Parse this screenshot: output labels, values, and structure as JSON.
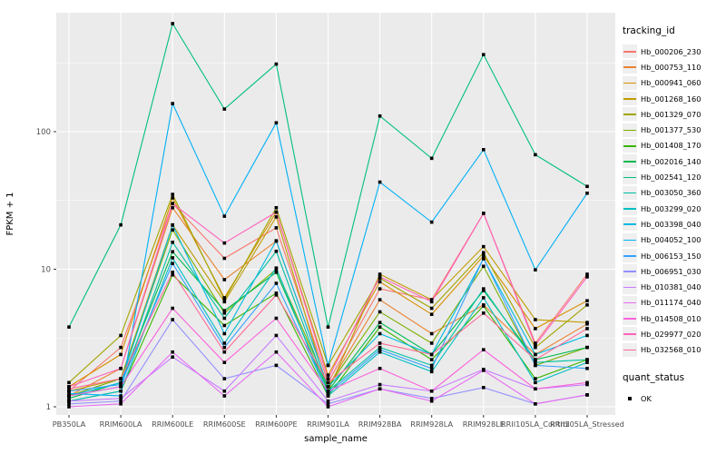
{
  "figure": {
    "background": "#FFFFFF",
    "panel_background": "#EBEBEB",
    "grid_color": "#FFFFFF",
    "tick_label_color": "#4D4D4D",
    "axis_title_color": "#000000",
    "point_color": "#000000"
  },
  "axes": {
    "x_title": "sample_name",
    "y_title": "FPKM + 1",
    "y_tick_labels": [
      "1",
      "10",
      "100"
    ]
  },
  "legend": {
    "tracking_title": "tracking_id",
    "quant_title": "quant_status",
    "quant_entries": [
      {
        "label": "OK"
      }
    ]
  },
  "chart_data": {
    "type": "line",
    "x_axis": "sample_name",
    "y_axis": "FPKM + 1",
    "y_scale": "log10",
    "ylim": [
      1,
      730
    ],
    "y_major_ticks": [
      1,
      10,
      100
    ],
    "y_minor_ticks": [
      3.162,
      31.62,
      316.2
    ],
    "grid": true,
    "legend_position": "right",
    "marker": "black-square",
    "marker_legend_label": "OK",
    "categories": [
      "PB350LA",
      "RRIM600LA",
      "RRIM600LE",
      "RRIM600SE",
      "RRIM600PE",
      "RRIM901LA",
      "RRIM928BA",
      "RRIM928LA",
      "RRIM928LE",
      "RRII105LA_Control",
      "RRII105LA_Stressed"
    ],
    "series": [
      {
        "name": "Hb_000206_230",
        "color": "#F8766D",
        "values": [
          1.3,
          2.7,
          30,
          12,
          20,
          1.5,
          7.2,
          6.0,
          25.5,
          2.9,
          9.2
        ]
      },
      {
        "name": "Hb_000753_110",
        "color": "#EA8331",
        "values": [
          1.2,
          1.9,
          28,
          8.4,
          16,
          1.4,
          6.0,
          3.4,
          5.5,
          2.4,
          4.0
        ]
      },
      {
        "name": "Hb_000941_060",
        "color": "#D89000",
        "values": [
          1.4,
          2.4,
          33,
          6.2,
          26,
          1.7,
          8.1,
          4.7,
          12.5,
          3.7,
          5.9
        ]
      },
      {
        "name": "Hb_001268_160",
        "color": "#C09B00",
        "values": [
          1.3,
          1.6,
          21,
          5.8,
          24,
          1.3,
          9.2,
          6.0,
          14.6,
          4.3,
          4.1
        ]
      },
      {
        "name": "Hb_001329_070",
        "color": "#A3A500",
        "values": [
          1.5,
          3.3,
          35,
          6.0,
          28,
          2.0,
          8.6,
          5.2,
          13.2,
          2.7,
          5.5
        ]
      },
      {
        "name": "Hb_001377_530",
        "color": "#7CAE00",
        "values": [
          1.2,
          1.6,
          19.3,
          4.8,
          10,
          1.4,
          4.9,
          2.9,
          10.5,
          2.0,
          2.7
        ]
      },
      {
        "name": "Hb_001408_170",
        "color": "#39B600",
        "values": [
          1.1,
          1.3,
          9.1,
          3.9,
          6.7,
          1.2,
          3.8,
          2.2,
          5.4,
          1.6,
          2.2
        ]
      },
      {
        "name": "Hb_002016_140",
        "color": "#00BB4E",
        "values": [
          1.15,
          1.5,
          13.4,
          5.0,
          9.5,
          1.3,
          4.1,
          2.4,
          7.0,
          2.2,
          2.7
        ]
      },
      {
        "name": "Hb_002541_120",
        "color": "#00BF7D",
        "values": [
          3.8,
          21,
          610,
          146,
          310,
          3.8,
          130,
          64,
          363,
          68,
          40
        ]
      },
      {
        "name": "Hb_003050_360",
        "color": "#00C1A3",
        "values": [
          1.2,
          1.4,
          15.7,
          4.4,
          13.5,
          1.3,
          2.7,
          2.0,
          7.2,
          2.1,
          2.2
        ]
      },
      {
        "name": "Hb_003299_020",
        "color": "#00BFC4",
        "values": [
          1.1,
          1.3,
          12.1,
          2.9,
          10.2,
          1.2,
          2.5,
          1.8,
          6.2,
          1.5,
          2.1
        ]
      },
      {
        "name": "Hb_003398_040",
        "color": "#00BAE0",
        "values": [
          1.2,
          1.5,
          20.9,
          3.4,
          16.1,
          1.4,
          3.4,
          2.4,
          11.9,
          2.4,
          3.3
        ]
      },
      {
        "name": "Hb_004052_100",
        "color": "#00B0F6",
        "values": [
          1.25,
          1.2,
          160,
          24.3,
          116,
          2.0,
          43,
          22,
          74,
          9.9,
          35.7
        ]
      },
      {
        "name": "Hb_006153_150",
        "color": "#35A2FF",
        "values": [
          1.3,
          1.45,
          11.0,
          2.7,
          7.9,
          1.25,
          2.6,
          1.9,
          12.0,
          2.0,
          1.9
        ]
      },
      {
        "name": "Hb_006951_030",
        "color": "#9590FF",
        "values": [
          1.05,
          1.1,
          4.3,
          1.6,
          2.0,
          1.05,
          1.35,
          1.15,
          1.38,
          1.05,
          1.22
        ]
      },
      {
        "name": "Hb_010381_040",
        "color": "#C77CFF",
        "values": [
          1.1,
          1.15,
          2.3,
          1.3,
          3.3,
          1.1,
          1.45,
          1.3,
          1.87,
          1.35,
          1.45
        ]
      },
      {
        "name": "Hb_011174_040",
        "color": "#E76BF3",
        "values": [
          1.0,
          1.05,
          2.5,
          1.2,
          2.5,
          1.0,
          1.35,
          1.1,
          1.84,
          1.05,
          1.22
        ]
      },
      {
        "name": "Hb_014508_010",
        "color": "#FA62DB",
        "values": [
          1.2,
          1.4,
          5.2,
          2.1,
          4.4,
          1.3,
          1.9,
          1.3,
          2.6,
          1.35,
          1.5
        ]
      },
      {
        "name": "Hb_029977_020",
        "color": "#FF62BC",
        "values": [
          1.4,
          1.9,
          30,
          15.5,
          26,
          1.6,
          8.8,
          5.8,
          25.5,
          2.8,
          8.8
        ]
      },
      {
        "name": "Hb_032568_010",
        "color": "#FF6A98",
        "values": [
          1.35,
          1.6,
          9.5,
          2.5,
          6.5,
          1.5,
          2.9,
          2.4,
          4.8,
          2.2,
          3.7
        ]
      }
    ]
  }
}
